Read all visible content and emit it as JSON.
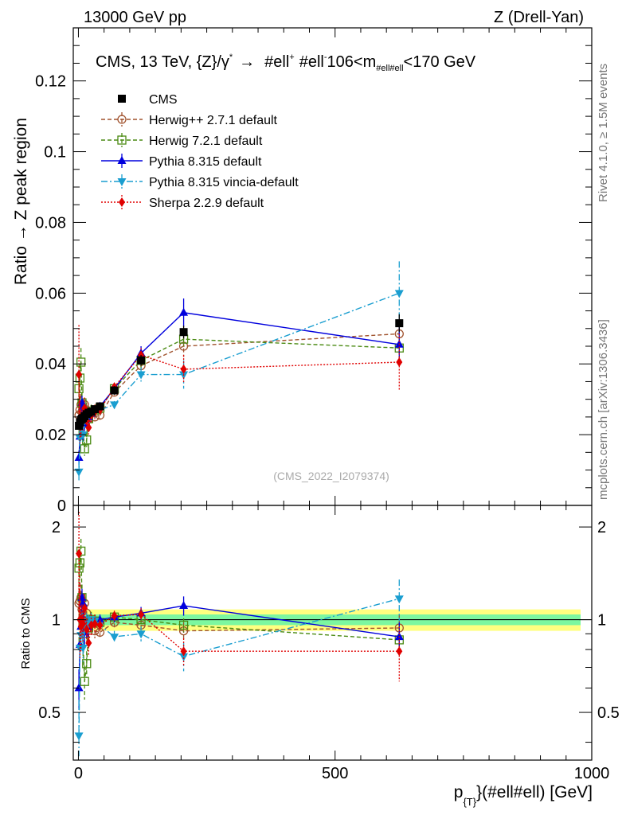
{
  "header": {
    "left": "13000 GeV pp",
    "right": "Z (Drell-Yan)"
  },
  "side_labels": {
    "rivet": "Rivet 4.1.0, ≥ 1.5M events",
    "mcplots": "mcplots.cern.ch [arXiv:1306.3436]"
  },
  "watermark": "(CMS_2022_I2079374)",
  "colors": {
    "cms": "#000000",
    "herwigpp": "#a0522d",
    "herwig7": "#4a8a12",
    "pythia": "#0000dd",
    "vincia": "#1a9ed0",
    "sherpa": "#e00000",
    "band_inner": "#7cf7a0",
    "band_outer": "#ffff80"
  },
  "chart_data": [
    {
      "type": "scatter",
      "title": "CMS, 13 TeV, {Z}/γ* → #ell⁺ #ell⁻, 106<m#ell#ell<170 GeV",
      "title_parts": {
        "main": "CMS, 13 TeV, {Z}/γ",
        "star": "*",
        "arrow": "→",
        "ell1": "#ell",
        "plus": "+",
        "ell2": "#ell",
        "minus": "-",
        "mass": "106<m",
        "mass_sub": "#ell#ell",
        "mass_tail": "<170 GeV"
      },
      "xlabel": "p{T}(#ell#ell) [GeV]",
      "xlabel_parts": {
        "p": "p",
        "sub": "{T}",
        "rest": "}(#ell#ell) [GeV]"
      },
      "ylabel": "Ratio → Z peak region",
      "xlim": [
        -10,
        1000
      ],
      "ylim": [
        0,
        0.135
      ],
      "xticks": [
        0,
        500,
        1000
      ],
      "yticks": [
        0,
        0.02,
        0.04,
        0.06,
        0.08,
        0.1,
        0.12
      ],
      "ytick_labels": [
        "0",
        "0.02",
        "0.04",
        "0.06",
        "0.08",
        "0.1",
        "0.12"
      ],
      "series": [
        {
          "name": "CMS",
          "key": "cms",
          "x": [
            1,
            3,
            5,
            7,
            9,
            12,
            16,
            20,
            25,
            32,
            42,
            70,
            122,
            205,
            625
          ],
          "y": [
            0.0225,
            0.0235,
            0.0242,
            0.0245,
            0.0247,
            0.0252,
            0.0258,
            0.0262,
            0.0265,
            0.0272,
            0.028,
            0.0325,
            0.041,
            0.049,
            0.0515
          ],
          "err": [
            0.001,
            0.001,
            0.001,
            0.001,
            0.001,
            0.001,
            0.001,
            0.001,
            0.001,
            0.001,
            0.001,
            0.0012,
            0.0015,
            0.0018,
            0.0025
          ]
        },
        {
          "name": "Herwig++ 2.7.1 default",
          "key": "herwigpp",
          "x": [
            1,
            3,
            5,
            7,
            9,
            12,
            16,
            20,
            25,
            32,
            42,
            70,
            122,
            205,
            625
          ],
          "y": [
            0.0255,
            0.027,
            0.0285,
            0.0265,
            0.0255,
            0.0285,
            0.027,
            0.0245,
            0.026,
            0.025,
            0.0255,
            0.032,
            0.0395,
            0.045,
            0.0485
          ],
          "err": [
            0.004,
            0.004,
            0.003,
            0.003,
            0.003,
            0.002,
            0.002,
            0.002,
            0.002,
            0.001,
            0.001,
            0.001,
            0.002,
            0.003,
            0.006
          ]
        },
        {
          "name": "Herwig 7.2.1 default",
          "key": "herwig7",
          "x": [
            1,
            3,
            5,
            7,
            9,
            12,
            16,
            20,
            25,
            32,
            42,
            70,
            122,
            205,
            625
          ],
          "y": [
            0.033,
            0.036,
            0.0405,
            0.029,
            0.021,
            0.016,
            0.0185,
            0.0245,
            0.0265,
            0.027,
            0.0275,
            0.033,
            0.041,
            0.047,
            0.0445
          ],
          "err": [
            0.004,
            0.004,
            0.004,
            0.003,
            0.003,
            0.002,
            0.002,
            0.002,
            0.002,
            0.001,
            0.001,
            0.001,
            0.002,
            0.002,
            0.005
          ]
        },
        {
          "name": "Pythia 8.315 default",
          "key": "pythia",
          "x": [
            1,
            3,
            5,
            7,
            9,
            12,
            16,
            20,
            25,
            32,
            42,
            70,
            122,
            205,
            625
          ],
          "y": [
            0.0135,
            0.0195,
            0.023,
            0.029,
            0.028,
            0.023,
            0.0245,
            0.025,
            0.026,
            0.027,
            0.028,
            0.033,
            0.043,
            0.0545,
            0.0455
          ],
          "err": [
            0.002,
            0.002,
            0.002,
            0.002,
            0.002,
            0.002,
            0.002,
            0.002,
            0.001,
            0.001,
            0.001,
            0.001,
            0.002,
            0.004,
            0.005
          ]
        },
        {
          "name": "Pythia 8.315 vincia-default",
          "key": "vincia",
          "x": [
            1,
            3,
            5,
            7,
            9,
            12,
            16,
            20,
            25,
            32,
            42,
            70,
            122,
            205,
            625
          ],
          "y": [
            0.0095,
            0.019,
            0.0215,
            0.024,
            0.02,
            0.024,
            0.025,
            0.0255,
            0.0265,
            0.027,
            0.027,
            0.0285,
            0.037,
            0.037,
            0.06
          ],
          "err": [
            0.003,
            0.002,
            0.002,
            0.002,
            0.002,
            0.002,
            0.002,
            0.002,
            0.001,
            0.001,
            0.001,
            0.001,
            0.002,
            0.004,
            0.009
          ]
        },
        {
          "name": "Sherpa 2.2.9 default",
          "key": "sherpa",
          "x": [
            1,
            3,
            5,
            7,
            9,
            12,
            16,
            20,
            25,
            32,
            42,
            70,
            122,
            205,
            625
          ],
          "y": [
            0.037,
            0.0235,
            0.023,
            0.0245,
            0.024,
            0.0275,
            0.024,
            0.022,
            0.0255,
            0.0265,
            0.027,
            0.0335,
            0.0425,
            0.0385,
            0.0405
          ],
          "err": [
            0.014,
            0.006,
            0.004,
            0.003,
            0.003,
            0.003,
            0.002,
            0.002,
            0.002,
            0.002,
            0.001,
            0.001,
            0.002,
            0.004,
            0.008
          ]
        }
      ]
    },
    {
      "type": "scatter",
      "title": "",
      "ylabel": "Ratio to CMS",
      "xlim": [
        -10,
        1000
      ],
      "ylim": [
        0.35,
        2.35
      ],
      "log_y": true,
      "yticks": [
        0.5,
        1,
        2
      ],
      "ytick_labels": [
        "0.5",
        "1",
        "2"
      ],
      "band": {
        "inner": 0.04,
        "outer": 0.08
      },
      "reference": 1,
      "series": [
        {
          "key": "herwigpp",
          "x": [
            1,
            3,
            5,
            7,
            9,
            12,
            16,
            20,
            25,
            32,
            42,
            70,
            122,
            205,
            625
          ],
          "y": [
            1.13,
            1.15,
            1.18,
            1.08,
            1.03,
            1.13,
            1.05,
            0.94,
            0.98,
            0.92,
            0.91,
            0.98,
            0.96,
            0.92,
            0.94
          ],
          "err": [
            0.18,
            0.17,
            0.12,
            0.1,
            0.1,
            0.08,
            0.07,
            0.07,
            0.06,
            0.05,
            0.04,
            0.04,
            0.05,
            0.06,
            0.1
          ]
        },
        {
          "key": "herwig7",
          "x": [
            1,
            3,
            5,
            7,
            9,
            12,
            16,
            20,
            25,
            32,
            42,
            70,
            122,
            205,
            625
          ],
          "y": [
            1.47,
            1.53,
            1.67,
            1.18,
            0.85,
            0.63,
            0.72,
            0.94,
            1.0,
            0.99,
            0.98,
            1.02,
            1.0,
            0.96,
            0.86
          ],
          "err": [
            0.18,
            0.17,
            0.16,
            0.12,
            0.1,
            0.08,
            0.07,
            0.07,
            0.06,
            0.05,
            0.04,
            0.04,
            0.05,
            0.05,
            0.1
          ]
        },
        {
          "key": "pythia",
          "x": [
            1,
            3,
            5,
            7,
            9,
            12,
            16,
            20,
            25,
            32,
            42,
            70,
            122,
            205,
            625
          ],
          "y": [
            0.6,
            0.83,
            0.95,
            1.18,
            1.13,
            0.91,
            0.95,
            0.95,
            0.98,
            0.99,
            1.0,
            1.02,
            1.05,
            1.11,
            0.88
          ],
          "err": [
            0.09,
            0.08,
            0.08,
            0.08,
            0.08,
            0.08,
            0.08,
            0.07,
            0.05,
            0.04,
            0.04,
            0.04,
            0.05,
            0.08,
            0.1
          ]
        },
        {
          "key": "vincia",
          "x": [
            1,
            3,
            5,
            7,
            9,
            12,
            16,
            20,
            25,
            32,
            42,
            70,
            122,
            205,
            625
          ],
          "y": [
            0.42,
            0.81,
            0.89,
            0.98,
            0.81,
            0.95,
            0.97,
            0.97,
            1.0,
            0.99,
            0.96,
            0.88,
            0.9,
            0.76,
            1.17
          ],
          "err": [
            0.13,
            0.08,
            0.08,
            0.08,
            0.08,
            0.08,
            0.08,
            0.07,
            0.05,
            0.04,
            0.04,
            0.04,
            0.05,
            0.08,
            0.18
          ]
        },
        {
          "key": "sherpa",
          "x": [
            1,
            3,
            5,
            7,
            9,
            12,
            16,
            20,
            25,
            32,
            42,
            70,
            122,
            205,
            625
          ],
          "y": [
            1.64,
            1.0,
            0.95,
            1.0,
            0.97,
            1.09,
            0.93,
            0.84,
            0.96,
            0.97,
            0.96,
            1.03,
            1.04,
            0.79,
            0.79
          ],
          "err": [
            0.6,
            0.25,
            0.16,
            0.12,
            0.12,
            0.12,
            0.08,
            0.08,
            0.08,
            0.07,
            0.04,
            0.04,
            0.05,
            0.08,
            0.16
          ]
        }
      ]
    }
  ]
}
